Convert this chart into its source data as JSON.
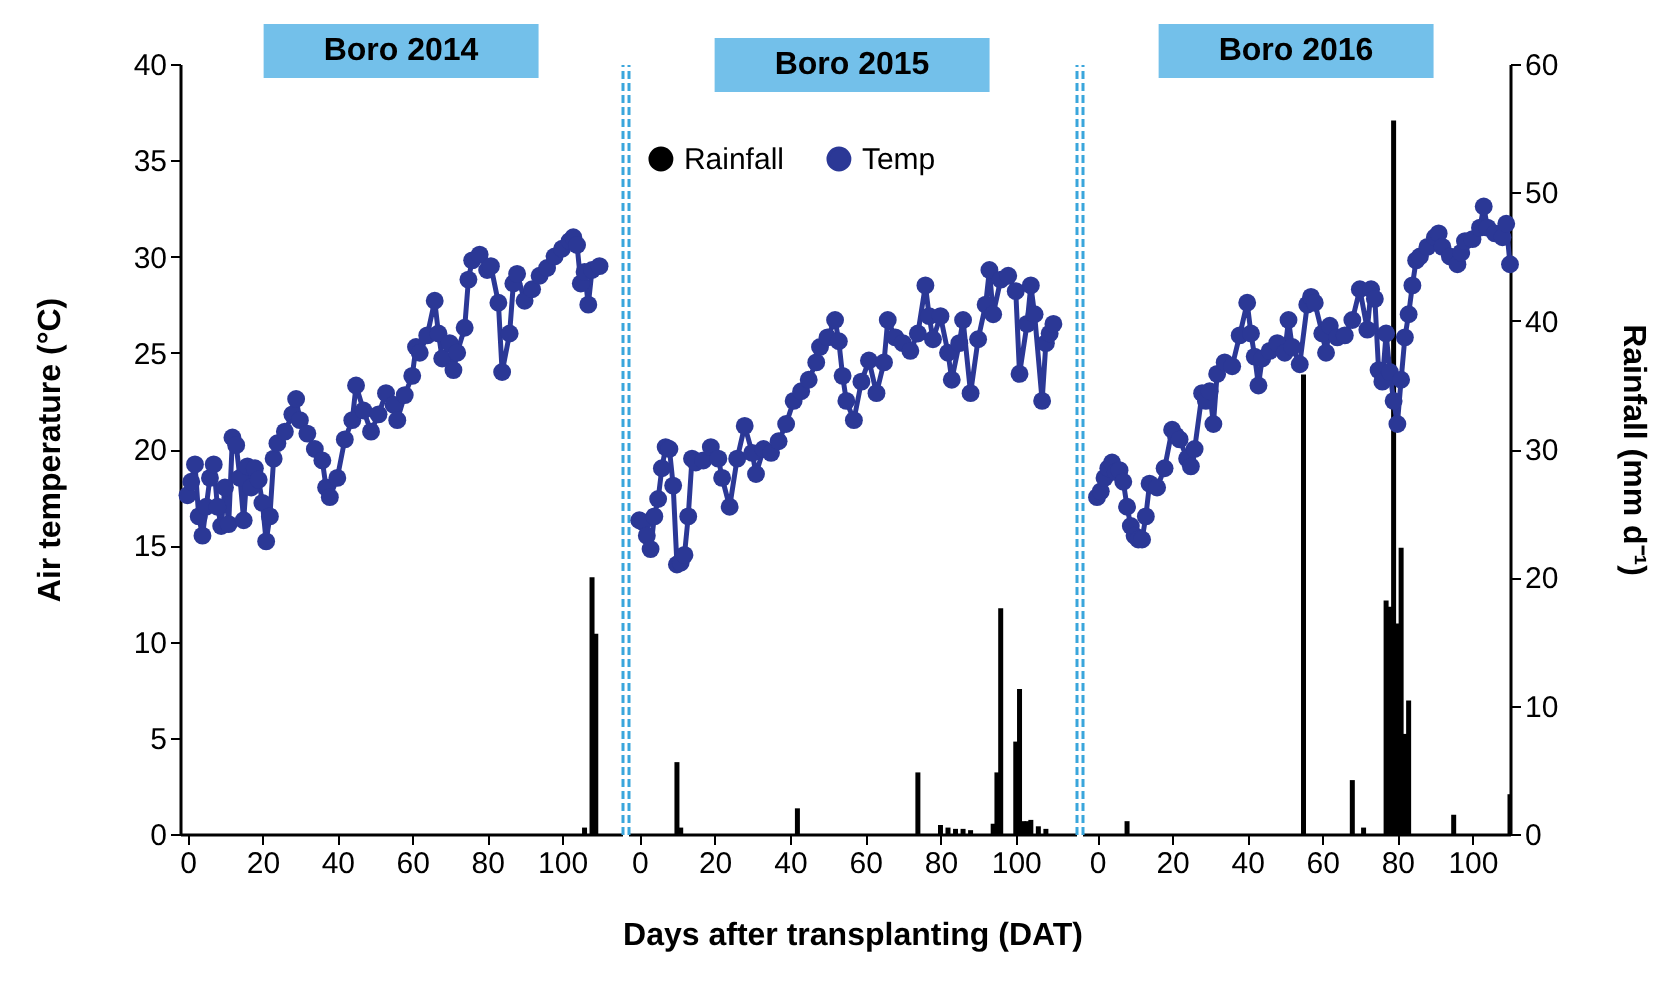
{
  "chart_data": [
    {
      "type": "line",
      "title": "Boro 2014",
      "ylabel": "Air temperature (°C)",
      "xlim": [
        -2,
        116
      ],
      "xticks": [
        0,
        20,
        40,
        60,
        80,
        100
      ],
      "ylim": [
        0,
        40
      ],
      "yticks": [
        0,
        5,
        10,
        15,
        20,
        25,
        30,
        35,
        40
      ],
      "y2lim": [
        0,
        60
      ],
      "tick_labels": "xy",
      "marker": "circle",
      "series": [
        {
          "type": "bar",
          "axis": "y2",
          "color": "#000000",
          "x": [
            106,
            108,
            109
          ],
          "values": [
            0.5,
            20,
            15.6
          ]
        },
        {
          "color": "#2b3896",
          "x": [
            0,
            1,
            2,
            3,
            4,
            5,
            6,
            7,
            8,
            9,
            10,
            11,
            12,
            13,
            14,
            15,
            16,
            17,
            18,
            19,
            20,
            21,
            22,
            23,
            24,
            26,
            28,
            29,
            30,
            32,
            34,
            36,
            37,
            38,
            40,
            42,
            44,
            45,
            47,
            49,
            51,
            53,
            55,
            56,
            58,
            60,
            61,
            62,
            64,
            66,
            67,
            68,
            70,
            71,
            72,
            74,
            75,
            76,
            78,
            80,
            81,
            83,
            84,
            86,
            87,
            88,
            90,
            92,
            94,
            96,
            98,
            100,
            102,
            103,
            104,
            105,
            106,
            107,
            108,
            110
          ],
          "values": [
            17.6,
            18.3,
            19.2,
            16.5,
            15.5,
            17.0,
            18.5,
            19.2,
            17.0,
            16.0,
            18.0,
            16.1,
            20.6,
            20.2,
            18.5,
            16.3,
            19.1,
            18.0,
            19.0,
            18.4,
            17.2,
            15.2,
            16.5,
            19.5,
            20.3,
            20.9,
            21.8,
            22.6,
            21.5,
            20.8,
            20.0,
            19.4,
            18.0,
            17.5,
            18.5,
            20.5,
            21.5,
            23.3,
            22.0,
            20.9,
            21.8,
            22.9,
            22.3,
            21.5,
            22.8,
            23.8,
            25.3,
            25.0,
            25.9,
            27.7,
            26.0,
            24.7,
            25.5,
            24.1,
            25.0,
            26.3,
            28.8,
            29.8,
            30.1,
            29.3,
            29.5,
            27.6,
            24.0,
            26.0,
            28.6,
            29.1,
            27.7,
            28.3,
            29.0,
            29.4,
            30.0,
            30.4,
            30.8,
            31.0,
            30.6,
            28.6,
            29.2,
            27.5,
            29.3,
            29.5
          ]
        }
      ]
    },
    {
      "type": "line",
      "title": "Boro 2015",
      "xlabel": "Days after transplanting (DAT)",
      "xlim": [
        -3,
        116
      ],
      "xticks": [
        0,
        20,
        40,
        60,
        80,
        100
      ],
      "ylim": [
        0,
        40
      ],
      "y2lim": [
        0,
        60
      ],
      "tick_labels": "x",
      "marker": "circle",
      "legend": "top",
      "series": [
        {
          "type": "bar",
          "axis": "y2",
          "name": "Rainfall",
          "color": "#000000",
          "x": [
            10,
            11,
            42,
            74,
            80,
            82,
            84,
            86,
            88,
            94,
            95,
            96,
            100,
            101,
            102,
            103,
            104,
            106,
            108
          ],
          "values": [
            5.6,
            0.5,
            2.0,
            4.8,
            0.7,
            0.5,
            0.4,
            0.4,
            0.3,
            0.8,
            4.8,
            17.6,
            7.2,
            11.3,
            1.0,
            1.0,
            1.1,
            0.6,
            0.4
          ]
        },
        {
          "name": "Temp",
          "color": "#2b3896",
          "x": [
            0,
            1,
            2,
            3,
            4,
            5,
            6,
            7,
            8,
            9,
            10,
            11,
            12,
            13,
            14,
            15,
            17,
            19,
            21,
            22,
            24,
            26,
            28,
            30,
            31,
            33,
            35,
            37,
            39,
            41,
            43,
            45,
            47,
            48,
            50,
            52,
            53,
            54,
            55,
            57,
            59,
            61,
            63,
            65,
            66,
            68,
            70,
            72,
            74,
            76,
            77,
            78,
            80,
            82,
            83,
            85,
            86,
            88,
            90,
            92,
            93,
            94,
            96,
            98,
            100,
            101,
            103,
            104,
            105,
            107,
            108,
            109,
            110
          ],
          "values": [
            16.3,
            16.2,
            15.5,
            14.8,
            16.5,
            17.4,
            19.0,
            20.1,
            20.0,
            18.1,
            14.0,
            14.1,
            14.5,
            16.5,
            19.5,
            19.3,
            19.4,
            20.1,
            19.5,
            18.5,
            17.0,
            19.5,
            21.2,
            19.8,
            18.7,
            20.0,
            19.8,
            20.4,
            21.3,
            22.5,
            23.0,
            23.6,
            24.5,
            25.3,
            25.8,
            26.7,
            25.6,
            23.8,
            22.5,
            21.5,
            23.5,
            24.6,
            22.9,
            24.5,
            26.7,
            25.8,
            25.5,
            25.1,
            26.0,
            28.5,
            26.9,
            25.7,
            26.9,
            25.0,
            23.6,
            25.5,
            26.7,
            22.9,
            25.7,
            27.5,
            29.3,
            27.0,
            28.8,
            29.0,
            28.2,
            23.9,
            26.5,
            28.5,
            27.0,
            22.5,
            25.5,
            26.0,
            26.5
          ]
        }
      ]
    },
    {
      "type": "line",
      "title": "Boro 2016",
      "y2label": "Rainfall (mm d⁻¹)",
      "xlim": [
        -4,
        110
      ],
      "xticks": [
        0,
        20,
        40,
        60,
        80,
        100
      ],
      "ylim": [
        0,
        40
      ],
      "y2lim": [
        0,
        60
      ],
      "y2ticks": [
        0,
        10,
        20,
        30,
        40,
        50,
        60
      ],
      "tick_labels": "xy2",
      "marker": "circle",
      "series": [
        {
          "type": "bar",
          "axis": "y2",
          "color": "#000000",
          "x": [
            8,
            55,
            68,
            71,
            77,
            78,
            79,
            80,
            81,
            82,
            83,
            95,
            110
          ],
          "values": [
            1.0,
            35.8,
            4.2,
            0.5,
            18.2,
            17.7,
            55.6,
            16.4,
            22.3,
            7.8,
            10.4,
            1.5,
            3.1
          ]
        },
        {
          "color": "#2b3896",
          "x": [
            0,
            1,
            2,
            3,
            4,
            5,
            6,
            7,
            8,
            9,
            10,
            11,
            12,
            13,
            14,
            16,
            18,
            20,
            21,
            22,
            24,
            25,
            26,
            28,
            29,
            30,
            31,
            32,
            34,
            36,
            38,
            40,
            41,
            42,
            43,
            44,
            46,
            48,
            50,
            51,
            52,
            54,
            56,
            57,
            58,
            60,
            61,
            62,
            64,
            66,
            68,
            70,
            72,
            73,
            74,
            75,
            76,
            77,
            78,
            79,
            80,
            81,
            82,
            83,
            84,
            85,
            86,
            88,
            90,
            91,
            92,
            94,
            96,
            97,
            98,
            100,
            102,
            103,
            104,
            106,
            108,
            109,
            110
          ],
          "values": [
            17.5,
            17.8,
            18.5,
            19.0,
            19.3,
            18.8,
            18.9,
            18.3,
            17.0,
            16.0,
            15.5,
            15.3,
            15.3,
            16.5,
            18.2,
            18.0,
            19.0,
            21.0,
            20.7,
            20.5,
            19.5,
            19.1,
            20.0,
            22.9,
            22.5,
            23.0,
            21.3,
            23.9,
            24.5,
            24.3,
            25.9,
            27.6,
            26.0,
            24.8,
            23.3,
            24.7,
            25.1,
            25.5,
            25.0,
            26.7,
            25.3,
            24.4,
            27.5,
            27.9,
            27.6,
            26.0,
            25.0,
            26.4,
            25.8,
            25.9,
            26.7,
            28.3,
            26.2,
            28.3,
            27.8,
            24.1,
            23.5,
            26.0,
            24.0,
            22.5,
            21.3,
            23.6,
            25.8,
            27.0,
            28.5,
            29.8,
            30.0,
            30.5,
            31.0,
            31.2,
            30.5,
            30.0,
            29.6,
            30.2,
            30.8,
            30.9,
            31.5,
            32.6,
            31.5,
            31.2,
            31.0,
            31.7,
            29.6
          ]
        }
      ]
    }
  ]
}
